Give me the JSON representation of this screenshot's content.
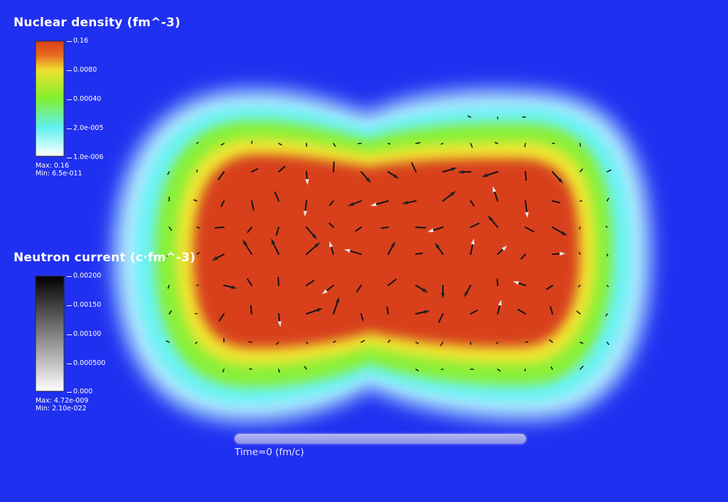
{
  "density_legend": {
    "title": "Nuclear density (fm^-3)",
    "ticks": [
      "0.16",
      "0.0080",
      "0.00040",
      "2.0e-005",
      "1.0e-006"
    ],
    "max_label": "Max: 0.16",
    "min_label": "Min: 6.5e-011",
    "colors": [
      "#d8401a",
      "#f0e030",
      "#80f030",
      "#60f0f0",
      "#ffffff"
    ]
  },
  "current_legend": {
    "title": "Neutron current (c·fm^-3)",
    "ticks": [
      "0.00200",
      "0.00150",
      "0.00100",
      "0.000500",
      "0.000"
    ],
    "max_label": "Max: 4.72e-009",
    "min_label": "Min: 2.10e-022",
    "colors": [
      "#000000",
      "#ffffff"
    ]
  },
  "time": {
    "label": "Time=0 (fm/c)"
  },
  "colors": {
    "background": "#2030f0",
    "core": "#d8401a",
    "arrow": "#1a1a1a"
  }
}
